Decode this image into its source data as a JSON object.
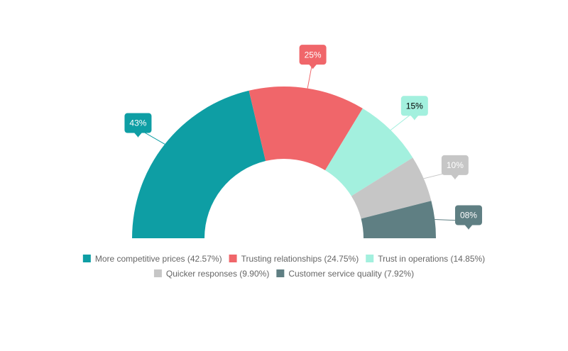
{
  "chart_data": {
    "type": "semi-donut",
    "categories": [
      "More competitive prices (42.57%)",
      "Trusting relationships (24.75%)",
      "Trust in operations (14.85%)",
      "Quicker responses (9.90%)",
      "Customer service quality (7.92%)"
    ],
    "values": [
      42.57,
      24.75,
      14.85,
      9.9,
      7.92
    ],
    "value_labels": [
      "43%",
      "25%",
      "15%",
      "10%",
      "08%"
    ],
    "colors": [
      "#0e9ea4",
      "#f0666a",
      "#a3f0de",
      "#c6c6c6",
      "#5f7f83"
    ],
    "legend": "bottom"
  }
}
